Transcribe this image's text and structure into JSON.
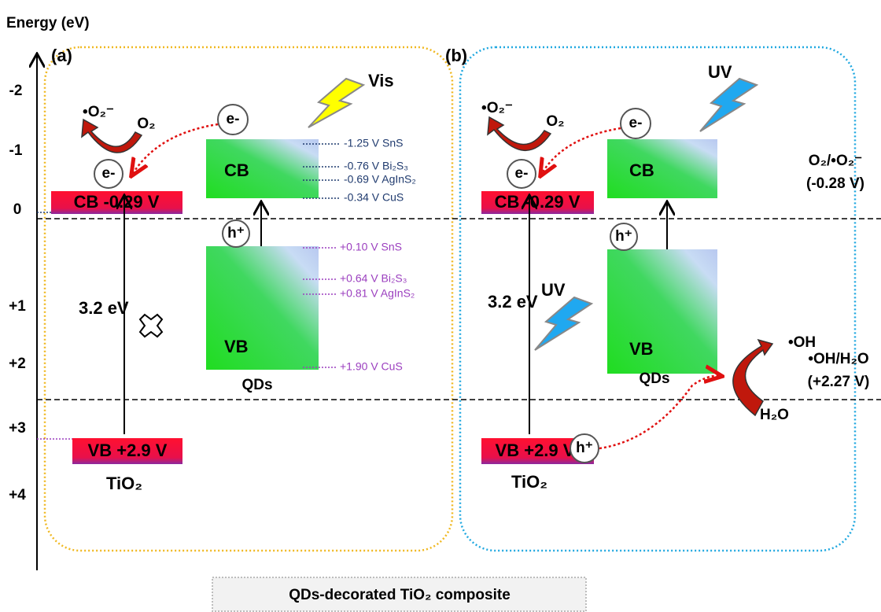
{
  "axis": {
    "title": "Energy (eV)",
    "ticks": [
      "-2",
      "-1",
      "0",
      "+1",
      "+2",
      "+3",
      "+4"
    ]
  },
  "panel_a": {
    "label": "(a)",
    "light": "Vis",
    "tio2": {
      "cb": "CB -0.29 V",
      "vb": "VB +2.9 V",
      "name": "TiO₂",
      "gap": "3.2 eV"
    },
    "qds": {
      "cb": "CB",
      "vb": "VB",
      "name": "QDs"
    },
    "electron_qd": "e-",
    "electron_tio2": "e-",
    "hole_qd": "h⁺",
    "superoxide": "•O₂⁻",
    "oxygen": "O₂",
    "cb_levels": [
      "-1.25 V SnS",
      "-0.76 V Bi₂S₃",
      "-0.69 V AgInS₂",
      "-0.34 V CuS"
    ],
    "vb_levels": [
      "+0.10 V SnS",
      "+0.64 V Bi₂S₃",
      "+0.81 V AgInS₂",
      "+1.90 V CuS"
    ]
  },
  "panel_b": {
    "label": "(b)",
    "light_top": "UV",
    "light_gap": "UV",
    "tio2": {
      "cb": "CB -0.29 V",
      "vb": "VB +2.9 V",
      "name": "TiO₂",
      "gap": "3.2 eV"
    },
    "qds": {
      "cb": "CB",
      "vb": "VB",
      "name": "QDs"
    },
    "electron_qd": "e-",
    "electron_tio2": "e-",
    "hole_qd": "h⁺",
    "hole_tio2": "h⁺",
    "superoxide": "•O₂⁻",
    "oxygen": "O₂",
    "hydroxyl": "•OH",
    "water": "H₂O"
  },
  "references": {
    "o2": "O₂/•O₂⁻",
    "o2_potential": "(-0.28 V)",
    "oh": "•OH/H₂O",
    "oh_potential": "(+2.27 V)"
  },
  "caption": "QDs-decorated TiO₂ composite"
}
